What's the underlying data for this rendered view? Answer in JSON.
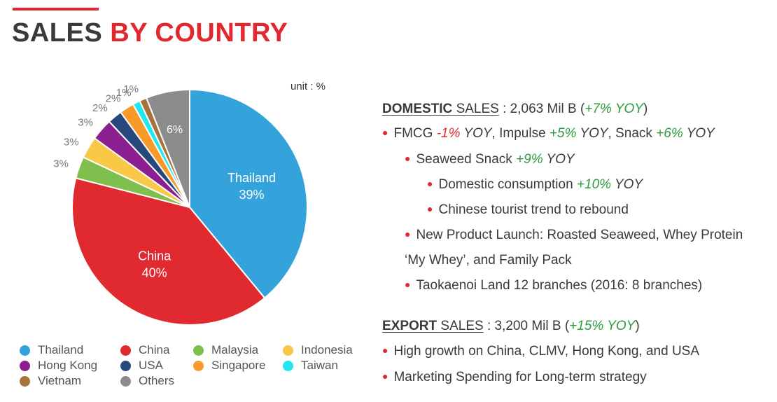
{
  "title": {
    "part1": "SALES",
    "part2": "BY COUNTRY"
  },
  "unit_label": "unit : %",
  "colors": {
    "accent": "#e2272e",
    "positive": "#2e9b3c",
    "negative": "#e2272e"
  },
  "chart_data": {
    "type": "pie",
    "unit": "%",
    "slices": [
      {
        "name": "Thailand",
        "value": 39,
        "label": "39%",
        "color": "#34a3dc"
      },
      {
        "name": "China",
        "value": 40,
        "label": "40%",
        "color": "#e02a30"
      },
      {
        "name": "Malaysia",
        "value": 3,
        "label": "3%",
        "color": "#7fbf4e"
      },
      {
        "name": "Indonesia",
        "value": 3,
        "label": "3%",
        "color": "#f9c846"
      },
      {
        "name": "Hong Kong",
        "value": 3,
        "label": "3%",
        "color": "#8b1f8f"
      },
      {
        "name": "USA",
        "value": 2,
        "label": "2%",
        "color": "#27487c"
      },
      {
        "name": "Singapore",
        "value": 2,
        "label": "2%",
        "color": "#f89a2a"
      },
      {
        "name": "Taiwan",
        "value": 1,
        "label": "1%",
        "color": "#22e6ee"
      },
      {
        "name": "Vietnam",
        "value": 1,
        "label": "1%",
        "color": "#a6743a"
      },
      {
        "name": "Others",
        "value": 6,
        "label": "6%",
        "color": "#8c8c8c"
      }
    ],
    "legend": [
      "Thailand",
      "China",
      "Malaysia",
      "Indonesia",
      "Hong Kong",
      "USA",
      "Singapore",
      "Taiwan",
      "Vietnam",
      "Others"
    ],
    "legend_placement": "bottom"
  },
  "domestic": {
    "header_u1": "DOMESTIC",
    "header_u2": "SALES",
    "header_rest": " : 2,063 Mil B (",
    "header_growth": "+7% YOY",
    "header_close": ")",
    "fmcg_label": "FMCG ",
    "fmcg_val": "-1%",
    "fmcg_yoy": " YOY",
    "impulse_label": ", Impulse ",
    "impulse_val": "+5%",
    "impulse_yoy": " YOY",
    "snack_label": ", Snack ",
    "snack_val": "+6%",
    "snack_yoy": " YOY",
    "seaweed_label": "Seaweed Snack ",
    "seaweed_val": "+9%",
    "seaweed_yoy": " YOY",
    "consumption_label": "Domestic consumption ",
    "consumption_val": "+10%",
    "consumption_yoy": " YOY",
    "tourist": "Chinese tourist trend to rebound",
    "launch_line1": "New Product Launch: Roasted Seaweed, Whey Protein",
    "launch_line2": "‘My Whey’, and Family Pack",
    "land": "Taokaenoi Land 12 branches (2016: 8 branches)"
  },
  "export": {
    "header_u1": "EXPORT",
    "header_u2": "SALES",
    "header_rest": " : 3,200 Mil B (",
    "header_growth": "+15% YOY",
    "header_close": ")",
    "item1": "High growth on China, CLMV, Hong Kong, and USA",
    "item2": "Marketing Spending for Long-term strategy"
  }
}
